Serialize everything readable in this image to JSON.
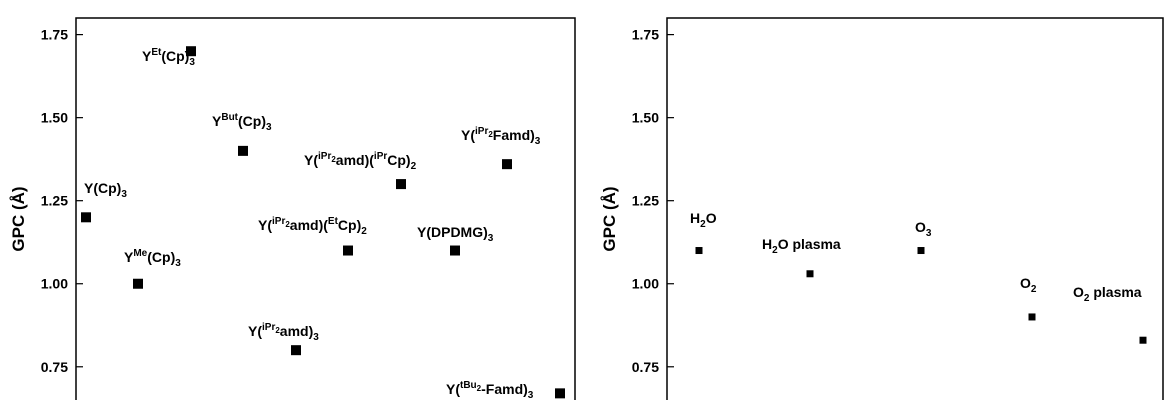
{
  "colors": {
    "marker": "#000000",
    "axis": "#000000",
    "background": "#ffffff"
  },
  "chart_data": [
    {
      "type": "scatter",
      "title": "",
      "xlabel": "",
      "ylabel": "GPC (Å)",
      "ylim": [
        0.65,
        1.8
      ],
      "yticks": [
        "0.75",
        "1.00",
        "1.25",
        "1.50",
        "1.75"
      ],
      "grid": false,
      "legend": "none",
      "x": [
        1,
        2,
        3,
        4,
        5,
        6,
        7,
        8,
        9,
        10
      ],
      "points": [
        {
          "x": 1,
          "y": 1.2,
          "label": [
            [
              "Y(Cp)",
              "n"
            ],
            [
              "3",
              "sub"
            ]
          ]
        },
        {
          "x": 2,
          "y": 1.0,
          "label": [
            [
              "Y",
              "n"
            ],
            [
              "Me",
              "sup"
            ],
            [
              "(Cp)",
              "n"
            ],
            [
              "3",
              "sub"
            ]
          ]
        },
        {
          "x": 3,
          "y": 1.7,
          "label": [
            [
              "Y",
              "n"
            ],
            [
              "Et",
              "sup"
            ],
            [
              "(Cp)",
              "n"
            ],
            [
              "3",
              "sub"
            ]
          ]
        },
        {
          "x": 4,
          "y": 1.4,
          "label": [
            [
              "Y",
              "n"
            ],
            [
              "But",
              "sup"
            ],
            [
              "(Cp)",
              "n"
            ],
            [
              "3",
              "sub"
            ]
          ]
        },
        {
          "x": 5,
          "y": 0.8,
          "label": [
            [
              "Y(",
              "n"
            ],
            [
              "iPr",
              "sup"
            ],
            [
              "2",
              "supsub"
            ],
            [
              "amd)",
              "n"
            ],
            [
              "3",
              "sub"
            ]
          ]
        },
        {
          "x": 6,
          "y": 1.1,
          "label": [
            [
              "Y(",
              "n"
            ],
            [
              "iPr",
              "sup"
            ],
            [
              "2",
              "supsub"
            ],
            [
              "amd)(",
              "n"
            ],
            [
              "Et",
              "sup"
            ],
            [
              "Cp)",
              "n"
            ],
            [
              "2",
              "sub"
            ]
          ]
        },
        {
          "x": 7,
          "y": 1.3,
          "label": [
            [
              "Y(",
              "n"
            ],
            [
              "iPr",
              "sup"
            ],
            [
              "2",
              "supsub"
            ],
            [
              "amd)(",
              "n"
            ],
            [
              "iPr",
              "sup"
            ],
            [
              "Cp)",
              "n"
            ],
            [
              "2",
              "sub"
            ]
          ]
        },
        {
          "x": 8,
          "y": 1.1,
          "label": [
            [
              "Y(DPDMG)",
              "n"
            ],
            [
              "3",
              "sub"
            ]
          ]
        },
        {
          "x": 9,
          "y": 1.36,
          "label": [
            [
              "Y(",
              "n"
            ],
            [
              "iPr",
              "sup"
            ],
            [
              "2",
              "supsub"
            ],
            [
              "Famd)",
              "n"
            ],
            [
              "3",
              "sub"
            ]
          ]
        },
        {
          "x": 10,
          "y": 0.67,
          "label": [
            [
              "Y(",
              "n"
            ],
            [
              "tBu",
              "sup"
            ],
            [
              "2",
              "supsub"
            ],
            [
              "-Famd)",
              "n"
            ],
            [
              "3",
              "sub"
            ]
          ]
        }
      ]
    },
    {
      "type": "scatter",
      "title": "",
      "xlabel": "",
      "ylabel": "GPC (Å)",
      "ylim": [
        0.65,
        1.8
      ],
      "yticks": [
        "0.75",
        "1.00",
        "1.25",
        "1.50",
        "1.75"
      ],
      "grid": false,
      "legend": "none",
      "x": [
        1,
        2,
        3,
        4,
        5
      ],
      "points": [
        {
          "x": 1,
          "y": 1.1,
          "label": [
            [
              "H",
              "n"
            ],
            [
              "2",
              "sub"
            ],
            [
              "O",
              "n"
            ]
          ]
        },
        {
          "x": 2,
          "y": 1.03,
          "label": [
            [
              "H",
              "n"
            ],
            [
              "2",
              "sub"
            ],
            [
              "O plasma",
              "n"
            ]
          ]
        },
        {
          "x": 3,
          "y": 1.1,
          "label": [
            [
              "O",
              "n"
            ],
            [
              "3",
              "sub"
            ]
          ]
        },
        {
          "x": 4,
          "y": 0.9,
          "label": [
            [
              "O",
              "n"
            ],
            [
              "2",
              "sub"
            ]
          ]
        },
        {
          "x": 5,
          "y": 0.83,
          "label": [
            [
              "O",
              "n"
            ],
            [
              "2",
              "sub"
            ],
            [
              " plasma",
              "n"
            ]
          ]
        }
      ]
    }
  ]
}
